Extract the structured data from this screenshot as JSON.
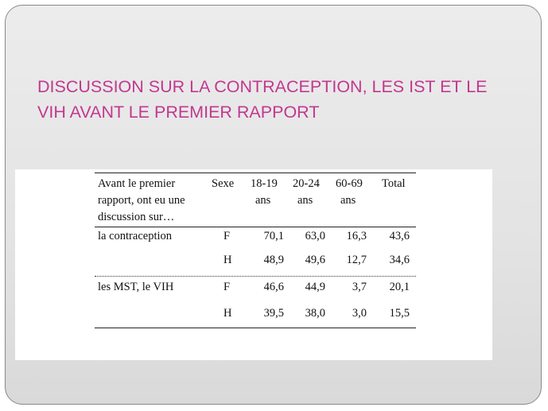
{
  "title": {
    "line1": "DISCUSSION SUR LA CONTRACEPTION, LES IST ET LE",
    "line2": "VIH  AVANT LE PREMIER RAPPORT"
  },
  "table": {
    "header": {
      "row_label": [
        "Avant le premier",
        "rapport, ont eu une",
        "discussion sur…"
      ],
      "sexe": "Sexe",
      "col1": [
        "18-19",
        "ans"
      ],
      "col2": [
        "20-24",
        "ans"
      ],
      "col3": [
        "60-69",
        "ans"
      ],
      "total": "Total"
    },
    "rows": [
      {
        "topic": "la contraception",
        "sexe": "F",
        "v1": "70,1",
        "v2": "63,0",
        "v3": "16,3",
        "total": "43,6"
      },
      {
        "topic": "",
        "sexe": "H",
        "v1": "48,9",
        "v2": "49,6",
        "v3": "12,7",
        "total": "34,6"
      },
      {
        "topic": "les MST, le VIH",
        "sexe": "F",
        "v1": "46,6",
        "v2": "44,9",
        "v3": "3,7",
        "total": "20,1"
      },
      {
        "topic": "",
        "sexe": "H",
        "v1": "39,5",
        "v2": "38,0",
        "v3": "3,0",
        "total": "15,5"
      }
    ]
  },
  "colors": {
    "title": "#c2388f",
    "slide_bg": "#e6e6e6",
    "table_bg": "#ffffff"
  }
}
